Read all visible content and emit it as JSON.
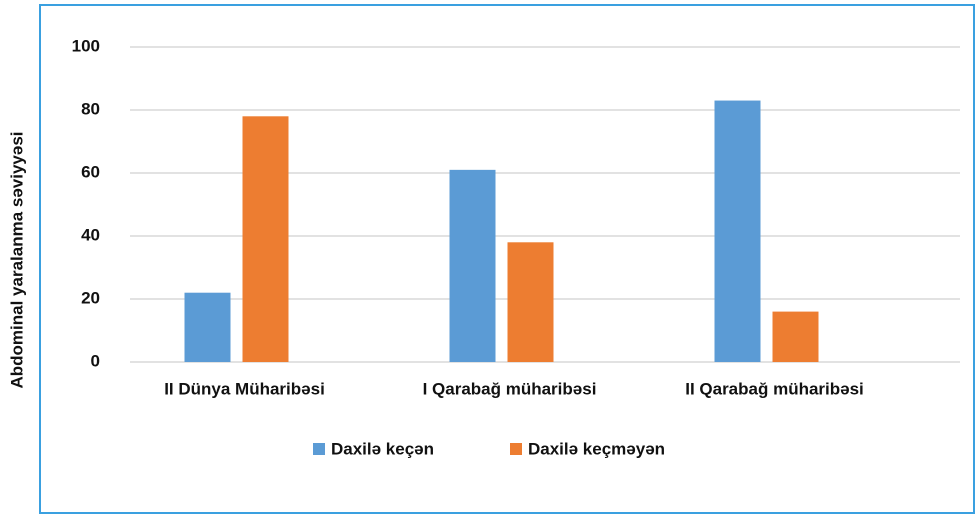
{
  "chart_data": {
    "type": "bar",
    "ylabel": "Abdominal yaralanma səviyyəsi",
    "categories": [
      "II Dünya Müharibəsi",
      "I Qarabağ müharibəsi",
      "II Qarabağ müharibəsi"
    ],
    "series": [
      {
        "name": "Daxilə keçən",
        "color": "#5b9bd5",
        "values": [
          22,
          61,
          83
        ]
      },
      {
        "name": "Daxilə keçməyən",
        "color": "#ed7d31",
        "values": [
          78,
          38,
          16
        ]
      }
    ],
    "ylim": [
      0,
      100
    ],
    "yticks": [
      0,
      20,
      40,
      60,
      80,
      100
    ],
    "grid": true,
    "legend": "bottom"
  }
}
